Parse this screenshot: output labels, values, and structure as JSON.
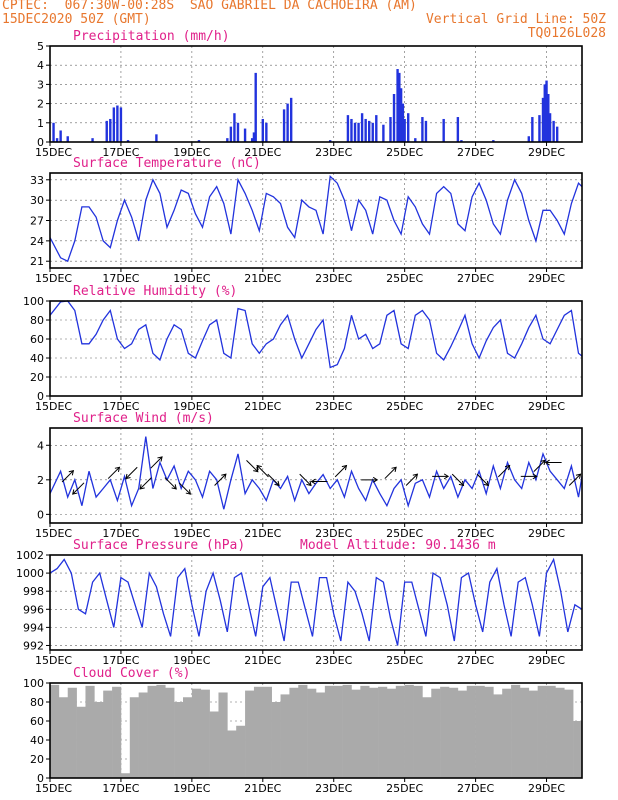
{
  "header": {
    "station": "CPTEC:  067:30W-00:28S  SAO GABRIEL DA CACHOEIRA (AM)",
    "date": "15DEC2020 50Z (GMT)",
    "grid_note": "Vertical Grid Line: 50Z",
    "run_code": "TQ0126L028"
  },
  "colors": {
    "header": "#e8772e",
    "title": "#e0208a",
    "line": "#2233dd",
    "bars": "#2233dd",
    "cloud": "#aaaaaa"
  },
  "chart_data": [
    {
      "type": "bar",
      "title": "Precipitation (mm/h)",
      "xlim": [
        15,
        30
      ],
      "ylim": [
        0,
        5
      ],
      "yticks": [
        0,
        1,
        2,
        3,
        4,
        5
      ],
      "xticks": [
        "15DEC",
        "17DEC",
        "19DEC",
        "21DEC",
        "23DEC",
        "25DEC",
        "27DEC",
        "29DEC"
      ],
      "x_tick_positions": [
        15,
        17,
        19,
        21,
        23,
        25,
        27,
        29
      ],
      "grid": true,
      "x": [
        15.1,
        15.2,
        15.3,
        15.5,
        16.2,
        16.6,
        16.7,
        16.8,
        16.9,
        17.0,
        17.2,
        18.0,
        19.2,
        20.0,
        20.1,
        20.2,
        20.3,
        20.5,
        20.7,
        20.75,
        20.8,
        21.0,
        21.1,
        21.6,
        21.7,
        21.8,
        22.9,
        23.4,
        23.5,
        23.6,
        23.7,
        23.8,
        23.9,
        24.0,
        24.1,
        24.2,
        24.4,
        24.6,
        24.7,
        24.8,
        24.85,
        24.9,
        24.95,
        25.0,
        25.1,
        25.3,
        25.5,
        25.6,
        26.1,
        26.5,
        26.6,
        27.5,
        28.5,
        28.6,
        28.8,
        28.9,
        28.95,
        29.0,
        29.05,
        29.1,
        29.2,
        29.3
      ],
      "values": [
        1.0,
        0.2,
        0.6,
        0.3,
        0.2,
        1.1,
        1.2,
        1.8,
        1.9,
        1.8,
        0.1,
        0.4,
        0.1,
        0.2,
        0.8,
        1.5,
        1.0,
        0.7,
        0.2,
        0.5,
        3.6,
        1.2,
        1.0,
        1.7,
        2.0,
        2.3,
        0.1,
        1.4,
        1.2,
        1.0,
        1.0,
        1.5,
        1.2,
        1.1,
        1.0,
        1.4,
        0.9,
        1.3,
        2.5,
        3.8,
        3.6,
        2.8,
        2.0,
        1.2,
        1.5,
        0.2,
        1.3,
        1.1,
        1.2,
        1.3,
        0.1,
        0.1,
        0.3,
        1.3,
        1.4,
        2.3,
        3.0,
        3.2,
        2.5,
        1.5,
        1.1,
        0.8
      ]
    },
    {
      "type": "line",
      "title": "Surface Temperature (nC)",
      "xlim": [
        15,
        30
      ],
      "ylim": [
        20,
        34
      ],
      "yticks": [
        21,
        24,
        27,
        30,
        33
      ],
      "xticks": [
        "15DEC",
        "17DEC",
        "19DEC",
        "21DEC",
        "23DEC",
        "25DEC",
        "27DEC",
        "29DEC"
      ],
      "x_tick_positions": [
        15,
        17,
        19,
        21,
        23,
        25,
        27,
        29
      ],
      "grid": true,
      "x": [
        15.0,
        15.3,
        15.5,
        15.7,
        15.9,
        16.1,
        16.3,
        16.5,
        16.7,
        16.9,
        17.1,
        17.3,
        17.5,
        17.7,
        17.9,
        18.1,
        18.3,
        18.5,
        18.7,
        18.9,
        19.1,
        19.3,
        19.5,
        19.7,
        19.9,
        20.1,
        20.3,
        20.5,
        20.7,
        20.9,
        21.1,
        21.3,
        21.5,
        21.7,
        21.9,
        22.1,
        22.3,
        22.5,
        22.7,
        22.9,
        23.1,
        23.3,
        23.5,
        23.7,
        23.9,
        24.1,
        24.3,
        24.5,
        24.7,
        24.9,
        25.1,
        25.3,
        25.5,
        25.7,
        25.9,
        26.1,
        26.3,
        26.5,
        26.7,
        26.9,
        27.1,
        27.3,
        27.5,
        27.7,
        27.9,
        28.1,
        28.3,
        28.5,
        28.7,
        28.9,
        29.1,
        29.3,
        29.5,
        29.7,
        29.9,
        30.0
      ],
      "values": [
        24.5,
        21.5,
        21.0,
        24.0,
        29.0,
        29.0,
        27.5,
        24.0,
        23.0,
        27.0,
        30.0,
        27.5,
        24.0,
        30.0,
        33.0,
        31.0,
        26.0,
        28.5,
        31.5,
        31.0,
        28.0,
        26.0,
        30.5,
        32.0,
        29.5,
        25.0,
        33.0,
        31.0,
        28.5,
        25.5,
        31.0,
        30.5,
        29.5,
        26.0,
        24.5,
        30.0,
        29.0,
        28.5,
        25.0,
        33.5,
        32.5,
        30.0,
        25.5,
        30.0,
        28.5,
        25.0,
        30.5,
        30.0,
        27.0,
        25.0,
        30.5,
        29.0,
        26.5,
        25.0,
        31.0,
        32.0,
        31.0,
        26.5,
        25.5,
        30.5,
        32.5,
        30.0,
        26.5,
        25.0,
        30.0,
        33.0,
        31.0,
        27.0,
        24.0,
        28.5,
        28.5,
        27.0,
        25.0,
        29.5,
        32.5,
        32.0
      ]
    },
    {
      "type": "line",
      "title": "Relative Humidity (%)",
      "xlim": [
        15,
        30
      ],
      "ylim": [
        0,
        100
      ],
      "yticks": [
        0,
        20,
        40,
        60,
        80,
        100
      ],
      "xticks": [
        "15DEC",
        "17DEC",
        "19DEC",
        "21DEC",
        "23DEC",
        "25DEC",
        "27DEC",
        "29DEC"
      ],
      "x_tick_positions": [
        15,
        17,
        19,
        21,
        23,
        25,
        27,
        29
      ],
      "grid": true,
      "x": [
        15.0,
        15.3,
        15.5,
        15.7,
        15.9,
        16.1,
        16.3,
        16.5,
        16.7,
        16.9,
        17.1,
        17.3,
        17.5,
        17.7,
        17.9,
        18.1,
        18.3,
        18.5,
        18.7,
        18.9,
        19.1,
        19.3,
        19.5,
        19.7,
        19.9,
        20.1,
        20.3,
        20.5,
        20.7,
        20.9,
        21.1,
        21.3,
        21.5,
        21.7,
        21.9,
        22.1,
        22.3,
        22.5,
        22.7,
        22.9,
        23.1,
        23.3,
        23.5,
        23.7,
        23.9,
        24.1,
        24.3,
        24.5,
        24.7,
        24.9,
        25.1,
        25.3,
        25.5,
        25.7,
        25.9,
        26.1,
        26.3,
        26.5,
        26.7,
        26.9,
        27.1,
        27.3,
        27.5,
        27.7,
        27.9,
        28.1,
        28.3,
        28.5,
        28.7,
        28.9,
        29.1,
        29.3,
        29.5,
        29.7,
        29.9,
        30.0
      ],
      "values": [
        85,
        99,
        100,
        90,
        55,
        55,
        65,
        80,
        90,
        60,
        50,
        55,
        70,
        75,
        45,
        38,
        60,
        75,
        70,
        45,
        40,
        58,
        75,
        80,
        45,
        40,
        92,
        90,
        55,
        45,
        55,
        60,
        75,
        85,
        60,
        40,
        55,
        70,
        80,
        30,
        33,
        50,
        85,
        60,
        65,
        50,
        55,
        85,
        90,
        55,
        50,
        85,
        90,
        80,
        45,
        38,
        52,
        68,
        85,
        55,
        40,
        58,
        72,
        80,
        45,
        40,
        55,
        72,
        85,
        60,
        55,
        70,
        85,
        90,
        45,
        42
      ]
    },
    {
      "type": "line",
      "title": "Surface Wind (m/s)",
      "xlim": [
        15,
        30
      ],
      "ylim": [
        -0.5,
        5
      ],
      "yticks": [
        0,
        2,
        4
      ],
      "xticks": [
        "15DEC",
        "17DEC",
        "19DEC",
        "21DEC",
        "23DEC",
        "25DEC",
        "27DEC",
        "29DEC"
      ],
      "x_tick_positions": [
        15,
        17,
        19,
        21,
        23,
        25,
        27,
        29
      ],
      "grid": true,
      "x": [
        15.0,
        15.3,
        15.5,
        15.7,
        15.9,
        16.1,
        16.3,
        16.5,
        16.7,
        16.9,
        17.1,
        17.3,
        17.5,
        17.7,
        17.9,
        18.1,
        18.3,
        18.5,
        18.7,
        18.9,
        19.1,
        19.3,
        19.5,
        19.7,
        19.9,
        20.1,
        20.3,
        20.5,
        20.7,
        20.9,
        21.1,
        21.3,
        21.5,
        21.7,
        21.9,
        22.1,
        22.3,
        22.5,
        22.7,
        22.9,
        23.1,
        23.3,
        23.5,
        23.7,
        23.9,
        24.1,
        24.3,
        24.5,
        24.7,
        24.9,
        25.1,
        25.3,
        25.5,
        25.7,
        25.9,
        26.1,
        26.3,
        26.5,
        26.7,
        26.9,
        27.1,
        27.3,
        27.5,
        27.7,
        27.9,
        28.1,
        28.3,
        28.5,
        28.7,
        28.9,
        29.1,
        29.3,
        29.5,
        29.7,
        29.9,
        30.0
      ],
      "values": [
        1.2,
        2.5,
        1.0,
        2.0,
        0.5,
        2.5,
        1.0,
        1.5,
        2.0,
        0.8,
        2.2,
        0.5,
        1.5,
        4.5,
        1.5,
        3.0,
        2.0,
        2.8,
        1.5,
        2.5,
        2.0,
        1.0,
        2.5,
        2.0,
        0.3,
        2.0,
        3.5,
        1.2,
        2.0,
        1.5,
        0.8,
        2.0,
        1.5,
        2.2,
        0.8,
        2.0,
        1.2,
        1.8,
        2.3,
        1.5,
        2.0,
        1.0,
        2.5,
        1.5,
        0.8,
        2.0,
        1.2,
        0.5,
        1.5,
        2.0,
        0.5,
        1.8,
        2.0,
        1.0,
        2.5,
        1.5,
        2.2,
        1.0,
        2.0,
        1.5,
        2.5,
        1.2,
        2.8,
        1.5,
        3.0,
        2.0,
        1.5,
        3.0,
        2.0,
        3.5,
        2.5,
        2.0,
        1.5,
        2.8,
        1.0,
        2.2
      ],
      "arrows": [
        {
          "x": 15.5,
          "y": 2.2,
          "dx": 1,
          "dy": 1
        },
        {
          "x": 15.8,
          "y": 1.5,
          "dx": -1,
          "dy": -1
        },
        {
          "x": 16.8,
          "y": 2.4,
          "dx": 1,
          "dy": 1
        },
        {
          "x": 17.3,
          "y": 2.4,
          "dx": -1,
          "dy": -1
        },
        {
          "x": 17.7,
          "y": 1.8,
          "dx": -1,
          "dy": -1
        },
        {
          "x": 18.0,
          "y": 3.0,
          "dx": 1,
          "dy": 1
        },
        {
          "x": 18.4,
          "y": 1.8,
          "dx": 1,
          "dy": -1
        },
        {
          "x": 18.8,
          "y": 1.5,
          "dx": 1,
          "dy": -1
        },
        {
          "x": 19.8,
          "y": 2.0,
          "dx": 1,
          "dy": 1
        },
        {
          "x": 20.7,
          "y": 2.8,
          "dx": 1,
          "dy": -1
        },
        {
          "x": 21.0,
          "y": 2.5,
          "dx": -1,
          "dy": 1
        },
        {
          "x": 21.3,
          "y": 2.0,
          "dx": 1,
          "dy": -1
        },
        {
          "x": 22.2,
          "y": 2.0,
          "dx": 1,
          "dy": -1
        },
        {
          "x": 22.6,
          "y": 1.9,
          "dx": -1,
          "dy": 0
        },
        {
          "x": 23.2,
          "y": 2.5,
          "dx": 1,
          "dy": 1
        },
        {
          "x": 24.0,
          "y": 2.0,
          "dx": 1,
          "dy": 0
        },
        {
          "x": 24.6,
          "y": 2.4,
          "dx": 1,
          "dy": 1
        },
        {
          "x": 25.2,
          "y": 2.0,
          "dx": 1,
          "dy": 1
        },
        {
          "x": 26.0,
          "y": 2.2,
          "dx": 1,
          "dy": 0
        },
        {
          "x": 26.5,
          "y": 2.0,
          "dx": 1,
          "dy": -1
        },
        {
          "x": 27.2,
          "y": 2.0,
          "dx": 1,
          "dy": -1
        },
        {
          "x": 27.8,
          "y": 2.5,
          "dx": 1,
          "dy": 1
        },
        {
          "x": 28.5,
          "y": 2.2,
          "dx": 1,
          "dy": 0
        },
        {
          "x": 28.8,
          "y": 2.8,
          "dx": 1,
          "dy": 1
        },
        {
          "x": 29.2,
          "y": 3.0,
          "dx": -1,
          "dy": 0
        },
        {
          "x": 29.8,
          "y": 2.0,
          "dx": 1,
          "dy": 1
        }
      ]
    },
    {
      "type": "line",
      "title": "Surface Pressure (hPa)",
      "annotation": "Model Altitude: 90.1436  m",
      "xlim": [
        15,
        30
      ],
      "ylim": [
        991.5,
        1002
      ],
      "yticks": [
        992,
        994,
        996,
        998,
        1000,
        1002
      ],
      "xticks": [
        "15DEC",
        "17DEC",
        "19DEC",
        "21DEC",
        "23DEC",
        "25DEC",
        "27DEC",
        "29DEC"
      ],
      "x_tick_positions": [
        15,
        17,
        19,
        21,
        23,
        25,
        27,
        29
      ],
      "grid": true,
      "x": [
        15.0,
        15.2,
        15.4,
        15.6,
        15.8,
        16.0,
        16.2,
        16.4,
        16.6,
        16.8,
        17.0,
        17.2,
        17.4,
        17.6,
        17.8,
        18.0,
        18.2,
        18.4,
        18.6,
        18.8,
        19.0,
        19.2,
        19.4,
        19.6,
        19.8,
        20.0,
        20.2,
        20.4,
        20.6,
        20.8,
        21.0,
        21.2,
        21.4,
        21.6,
        21.8,
        22.0,
        22.2,
        22.4,
        22.6,
        22.8,
        23.0,
        23.2,
        23.4,
        23.6,
        23.8,
        24.0,
        24.2,
        24.4,
        24.6,
        24.8,
        25.0,
        25.2,
        25.4,
        25.6,
        25.8,
        26.0,
        26.2,
        26.4,
        26.6,
        26.8,
        27.0,
        27.2,
        27.4,
        27.6,
        27.8,
        28.0,
        28.2,
        28.4,
        28.6,
        28.8,
        29.0,
        29.2,
        29.4,
        29.6,
        29.8,
        30.0
      ],
      "values": [
        1000.0,
        1000.5,
        1001.5,
        1000.0,
        996.0,
        995.5,
        999.0,
        1000.0,
        997.0,
        994.0,
        999.5,
        999.0,
        996.5,
        994.0,
        1000.0,
        998.5,
        995.5,
        993.0,
        999.5,
        1000.5,
        996.5,
        993.0,
        998.0,
        1000.0,
        997.0,
        993.5,
        999.5,
        1000.0,
        996.5,
        993.0,
        998.5,
        999.5,
        996.0,
        992.5,
        999.0,
        999.0,
        996.0,
        993.0,
        999.5,
        999.5,
        995.5,
        992.5,
        999.0,
        998.0,
        995.5,
        992.5,
        999.5,
        999.0,
        995.0,
        992.0,
        999.0,
        999.0,
        996.0,
        993.0,
        1000.0,
        999.5,
        996.5,
        992.5,
        999.5,
        1000.0,
        996.5,
        993.5,
        999.0,
        1000.5,
        996.5,
        993.0,
        999.0,
        999.5,
        996.5,
        993.0,
        1000.0,
        1001.5,
        998.0,
        993.5,
        996.5,
        996.0
      ]
    },
    {
      "type": "bar",
      "title": "Cloud Cover (%)",
      "xlim": [
        15,
        30
      ],
      "ylim": [
        0,
        100
      ],
      "yticks": [
        0,
        20,
        40,
        60,
        80,
        100
      ],
      "xticks": [
        "15DEC",
        "17DEC",
        "19DEC",
        "21DEC",
        "23DEC",
        "25DEC",
        "27DEC",
        "29DEC"
      ],
      "x_tick_positions": [
        15,
        17,
        19,
        21,
        23,
        25,
        27,
        29
      ],
      "grid": true,
      "x": [
        15.0,
        15.25,
        15.5,
        15.75,
        16.0,
        16.25,
        16.5,
        16.75,
        17.0,
        17.25,
        17.5,
        17.75,
        18.0,
        18.25,
        18.5,
        18.75,
        19.0,
        19.25,
        19.5,
        19.75,
        20.0,
        20.25,
        20.5,
        20.75,
        21.0,
        21.25,
        21.5,
        21.75,
        22.0,
        22.25,
        22.5,
        22.75,
        23.0,
        23.25,
        23.5,
        23.75,
        24.0,
        24.25,
        24.5,
        24.75,
        25.0,
        25.25,
        25.5,
        25.75,
        26.0,
        26.25,
        26.5,
        26.75,
        27.0,
        27.25,
        27.5,
        27.75,
        28.0,
        28.25,
        28.5,
        28.75,
        29.0,
        29.25,
        29.5,
        29.75
      ],
      "values": [
        98,
        85,
        95,
        75,
        97,
        80,
        92,
        96,
        5,
        85,
        90,
        97,
        98,
        95,
        80,
        85,
        94,
        93,
        70,
        90,
        50,
        55,
        92,
        96,
        96,
        80,
        88,
        95,
        98,
        94,
        90,
        97,
        97,
        98,
        93,
        97,
        95,
        96,
        94,
        97,
        98,
        97,
        85,
        94,
        96,
        95,
        92,
        97,
        97,
        96,
        88,
        94,
        98,
        95,
        92,
        97,
        97,
        95,
        93,
        60
      ]
    }
  ]
}
